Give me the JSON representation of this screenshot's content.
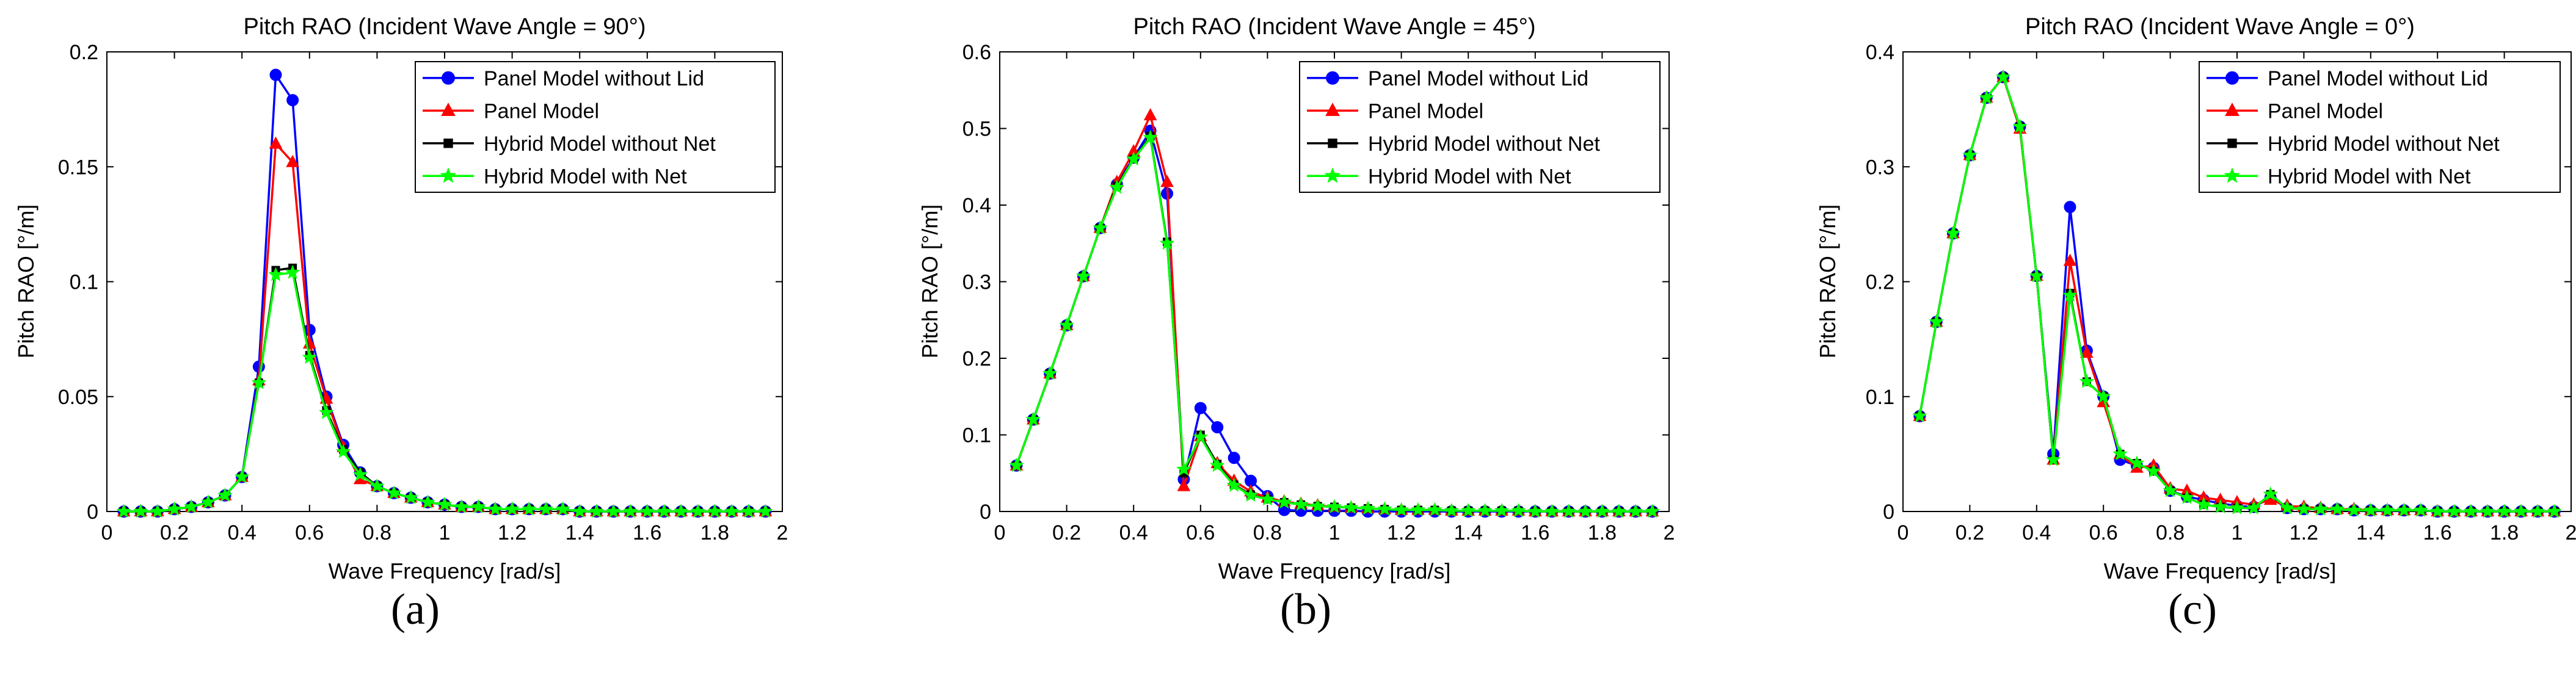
{
  "chart_data": [
    {
      "type": "line",
      "panel_label": "(a)",
      "title": "Pitch RAO (Incident Wave Angle = 90°)",
      "xlabel": "Wave Frequency [rad/s]",
      "ylabel": "Pitch RAO [°/m]",
      "xlim": [
        0,
        2
      ],
      "ylim": [
        0,
        0.2
      ],
      "xticks": [
        "0",
        "0.2",
        "0.4",
        "0.6",
        "0.8",
        "1",
        "1.2",
        "1.4",
        "1.6",
        "1.8",
        "2"
      ],
      "yticks": [
        "0",
        "0.05",
        "0.1",
        "0.15",
        "0.2"
      ],
      "grid": false,
      "legend_position": "top-right",
      "x": [
        0.05,
        0.1,
        0.15,
        0.2,
        0.25,
        0.3,
        0.35,
        0.4,
        0.45,
        0.5,
        0.55,
        0.6,
        0.65,
        0.7,
        0.75,
        0.8,
        0.85,
        0.9,
        0.95,
        1.0,
        1.05,
        1.1,
        1.15,
        1.2,
        1.25,
        1.3,
        1.35,
        1.4,
        1.45,
        1.5,
        1.55,
        1.6,
        1.65,
        1.7,
        1.75,
        1.8,
        1.85,
        1.9,
        1.95
      ],
      "series": [
        {
          "name": "Panel Model without Lid",
          "color": "#0000ff",
          "marker": "circle",
          "values": [
            0,
            0,
            0,
            0.001,
            0.002,
            0.004,
            0.007,
            0.015,
            0.063,
            0.19,
            0.179,
            0.079,
            0.05,
            0.029,
            0.017,
            0.011,
            0.008,
            0.006,
            0.004,
            0.003,
            0.002,
            0.002,
            0.001,
            0.001,
            0.001,
            0.001,
            0.001,
            0,
            0,
            0,
            0,
            0,
            0,
            0,
            0,
            0,
            0,
            0,
            0
          ]
        },
        {
          "name": "Panel Model",
          "color": "#ff0000",
          "marker": "triangle",
          "values": [
            0,
            0,
            0,
            0.001,
            0.002,
            0.004,
            0.007,
            0.015,
            0.057,
            0.16,
            0.152,
            0.073,
            0.049,
            0.028,
            0.014,
            0.011,
            0.008,
            0.006,
            0.004,
            0.003,
            0.002,
            0.002,
            0.001,
            0.001,
            0.001,
            0.001,
            0.001,
            0,
            0,
            0,
            0,
            0,
            0,
            0,
            0,
            0,
            0,
            0,
            0
          ]
        },
        {
          "name": "Hybrid Model without Net",
          "color": "#000000",
          "marker": "square",
          "values": [
            0,
            0,
            0,
            0.001,
            0.002,
            0.004,
            0.007,
            0.015,
            0.056,
            0.105,
            0.106,
            0.068,
            0.044,
            0.027,
            0.017,
            0.011,
            0.008,
            0.006,
            0.004,
            0.003,
            0.002,
            0.002,
            0.001,
            0.001,
            0.001,
            0.001,
            0.001,
            0,
            0,
            0,
            0,
            0,
            0,
            0,
            0,
            0,
            0,
            0,
            0
          ]
        },
        {
          "name": "Hybrid Model with Net",
          "color": "#00ff00",
          "marker": "star",
          "values": [
            0,
            0,
            0,
            0.001,
            0.002,
            0.004,
            0.007,
            0.015,
            0.056,
            0.103,
            0.104,
            0.067,
            0.043,
            0.026,
            0.016,
            0.011,
            0.008,
            0.006,
            0.004,
            0.003,
            0.002,
            0.002,
            0.001,
            0.001,
            0.001,
            0.001,
            0.001,
            0,
            0,
            0,
            0,
            0,
            0,
            0,
            0,
            0,
            0,
            0,
            0
          ]
        }
      ]
    },
    {
      "type": "line",
      "panel_label": "(b)",
      "title": "Pitch RAO (Incident Wave Angle = 45°)",
      "xlabel": "Wave Frequency [rad/s]",
      "ylabel": "Pitch RAO [°/m]",
      "xlim": [
        0,
        2
      ],
      "ylim": [
        0,
        0.6
      ],
      "xticks": [
        "0",
        "0.2",
        "0.4",
        "0.6",
        "0.8",
        "1",
        "1.2",
        "1.4",
        "1.6",
        "1.8",
        "2"
      ],
      "yticks": [
        "0",
        "0.1",
        "0.2",
        "0.3",
        "0.4",
        "0.5",
        "0.6"
      ],
      "grid": false,
      "legend_position": "top-right",
      "x": [
        0.05,
        0.1,
        0.15,
        0.2,
        0.25,
        0.3,
        0.35,
        0.4,
        0.45,
        0.5,
        0.55,
        0.6,
        0.65,
        0.7,
        0.75,
        0.8,
        0.85,
        0.9,
        0.95,
        1.0,
        1.05,
        1.1,
        1.15,
        1.2,
        1.25,
        1.3,
        1.35,
        1.4,
        1.45,
        1.5,
        1.55,
        1.6,
        1.65,
        1.7,
        1.75,
        1.8,
        1.85,
        1.9,
        1.95
      ],
      "series": [
        {
          "name": "Panel Model without Lid",
          "color": "#0000ff",
          "marker": "circle",
          "values": [
            0.06,
            0.12,
            0.18,
            0.243,
            0.307,
            0.37,
            0.427,
            0.462,
            0.497,
            0.415,
            0.042,
            0.135,
            0.11,
            0.07,
            0.04,
            0.02,
            0.002,
            0.001,
            0.001,
            0.001,
            0.001,
            0,
            0,
            0,
            0,
            0,
            0,
            0,
            0,
            0,
            0,
            0,
            0,
            0,
            0,
            0,
            0,
            0,
            0
          ]
        },
        {
          "name": "Panel Model",
          "color": "#ff0000",
          "marker": "triangle",
          "values": [
            0.06,
            0.12,
            0.18,
            0.243,
            0.307,
            0.37,
            0.43,
            0.47,
            0.517,
            0.43,
            0.033,
            0.098,
            0.063,
            0.04,
            0.026,
            0.018,
            0.013,
            0.01,
            0.008,
            0.006,
            0.005,
            0.004,
            0.003,
            0.002,
            0.002,
            0.002,
            0.001,
            0.001,
            0.001,
            0.001,
            0.001,
            0,
            0,
            0,
            0,
            0,
            0,
            0,
            0
          ]
        },
        {
          "name": "Hybrid Model without Net",
          "color": "#000000",
          "marker": "square",
          "values": [
            0.06,
            0.12,
            0.18,
            0.243,
            0.307,
            0.37,
            0.425,
            0.46,
            0.49,
            0.352,
            0.05,
            0.1,
            0.062,
            0.035,
            0.022,
            0.016,
            0.012,
            0.009,
            0.007,
            0.006,
            0.005,
            0.004,
            0.003,
            0.002,
            0.002,
            0.002,
            0.001,
            0.001,
            0.001,
            0.001,
            0.001,
            0,
            0,
            0,
            0,
            0,
            0,
            0,
            0
          ]
        },
        {
          "name": "Hybrid Model with Net",
          "color": "#00ff00",
          "marker": "star",
          "values": [
            0.06,
            0.12,
            0.18,
            0.243,
            0.307,
            0.37,
            0.423,
            0.46,
            0.488,
            0.35,
            0.055,
            0.097,
            0.06,
            0.034,
            0.021,
            0.016,
            0.012,
            0.009,
            0.007,
            0.006,
            0.005,
            0.004,
            0.003,
            0.002,
            0.002,
            0.002,
            0.001,
            0.001,
            0.001,
            0.001,
            0.001,
            0,
            0,
            0,
            0,
            0,
            0,
            0,
            0
          ]
        }
      ]
    },
    {
      "type": "line",
      "panel_label": "(c)",
      "title": "Pitch RAO (Incident Wave Angle = 0°)",
      "xlabel": "Wave Frequency [rad/s]",
      "ylabel": "Pitch RAO [°/m]",
      "xlim": [
        0,
        2
      ],
      "ylim": [
        0,
        0.4
      ],
      "xticks": [
        "0",
        "0.2",
        "0.4",
        "0.6",
        "0.8",
        "1",
        "1.2",
        "1.4",
        "1.6",
        "1.8",
        "2"
      ],
      "yticks": [
        "0",
        "0.1",
        "0.2",
        "0.3",
        "0.4"
      ],
      "grid": false,
      "legend_position": "top-right",
      "x": [
        0.05,
        0.1,
        0.15,
        0.2,
        0.25,
        0.3,
        0.35,
        0.4,
        0.45,
        0.5,
        0.55,
        0.6,
        0.65,
        0.7,
        0.75,
        0.8,
        0.85,
        0.9,
        0.95,
        1.0,
        1.05,
        1.1,
        1.15,
        1.2,
        1.25,
        1.3,
        1.35,
        1.4,
        1.45,
        1.5,
        1.55,
        1.6,
        1.65,
        1.7,
        1.75,
        1.8,
        1.85,
        1.9,
        1.95
      ],
      "series": [
        {
          "name": "Panel Model without Lid",
          "color": "#0000ff",
          "marker": "circle",
          "values": [
            0.083,
            0.165,
            0.242,
            0.31,
            0.36,
            0.378,
            0.335,
            0.205,
            0.05,
            0.265,
            0.14,
            0.1,
            0.045,
            0.04,
            0.038,
            0.018,
            0.013,
            0.01,
            0.007,
            0.005,
            0.004,
            0.012,
            0.003,
            0.002,
            0.002,
            0.002,
            0.001,
            0.001,
            0.001,
            0.001,
            0.001,
            0,
            0,
            0,
            0,
            0,
            0,
            0,
            0
          ]
        },
        {
          "name": "Panel Model",
          "color": "#ff0000",
          "marker": "triangle",
          "values": [
            0.083,
            0.165,
            0.242,
            0.31,
            0.36,
            0.378,
            0.333,
            0.205,
            0.045,
            0.218,
            0.138,
            0.095,
            0.05,
            0.038,
            0.04,
            0.02,
            0.018,
            0.012,
            0.01,
            0.008,
            0.006,
            0.01,
            0.005,
            0.004,
            0.003,
            0.002,
            0.002,
            0.001,
            0.001,
            0.001,
            0.001,
            0,
            0,
            0,
            0,
            0,
            0,
            0,
            0
          ]
        },
        {
          "name": "Hybrid Model without Net",
          "color": "#000000",
          "marker": "square",
          "values": [
            0.083,
            0.165,
            0.242,
            0.31,
            0.36,
            0.378,
            0.335,
            0.205,
            0.045,
            0.19,
            0.113,
            0.1,
            0.05,
            0.042,
            0.035,
            0.018,
            0.012,
            0.006,
            0.004,
            0.003,
            0.003,
            0.015,
            0.003,
            0.002,
            0.002,
            0.002,
            0.001,
            0.001,
            0.001,
            0.001,
            0.001,
            0,
            0,
            0,
            0,
            0,
            0,
            0,
            0
          ]
        },
        {
          "name": "Hybrid Model with Net",
          "color": "#00ff00",
          "marker": "star",
          "values": [
            0.083,
            0.165,
            0.242,
            0.31,
            0.36,
            0.378,
            0.335,
            0.205,
            0.045,
            0.188,
            0.113,
            0.1,
            0.05,
            0.042,
            0.035,
            0.018,
            0.012,
            0.006,
            0.004,
            0.003,
            0.003,
            0.015,
            0.003,
            0.002,
            0.002,
            0.002,
            0.001,
            0.001,
            0.001,
            0.001,
            0.001,
            0,
            0,
            0,
            0,
            0,
            0,
            0,
            0
          ]
        }
      ]
    }
  ]
}
